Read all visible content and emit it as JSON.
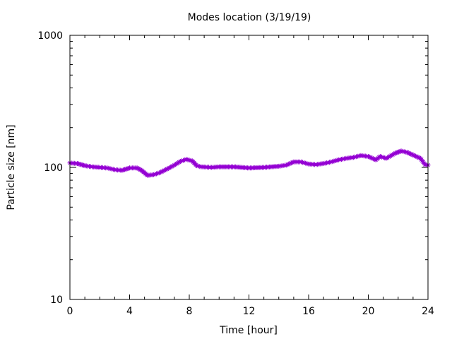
{
  "chart_data": {
    "type": "line",
    "title": "Modes location (3/19/19)",
    "xlabel": "Time [hour]",
    "ylabel": "Particle size [nm]",
    "xlim": [
      0,
      24
    ],
    "ylim": [
      10,
      1000
    ],
    "yscale": "log",
    "grid": false,
    "legend": "none",
    "marker": "star",
    "series_color": "#9400d3",
    "x_ticks": [
      0,
      4,
      8,
      12,
      16,
      20,
      24
    ],
    "x_tick_labels": [
      "0",
      "4",
      "8",
      "12",
      "16",
      "20",
      "24"
    ],
    "y_ticks": [
      10,
      100,
      1000
    ],
    "y_tick_labels": [
      "10",
      "100",
      "1000"
    ],
    "series": [
      {
        "x": [
          0,
          0.5,
          1,
          1.5,
          2,
          2.5,
          3,
          3.5,
          4,
          4.5,
          4.8,
          5.2,
          5.6,
          6,
          6.5,
          7,
          7.4,
          7.8,
          8.2,
          8.5,
          8.8,
          9.5,
          10,
          11,
          12,
          13,
          14,
          14.5,
          15,
          15.5,
          16,
          16.5,
          17,
          17.5,
          18,
          18.5,
          19,
          19.5,
          20,
          20.5,
          20.8,
          21.2,
          21.8,
          22.2,
          22.6,
          23,
          23.5,
          23.8,
          24
        ],
        "y": [
          108,
          107,
          103,
          101,
          100,
          99,
          96,
          95,
          99,
          99,
          95,
          87,
          88,
          91,
          97,
          104,
          111,
          115,
          112,
          103,
          101,
          100,
          101,
          101,
          99,
          100,
          102,
          104,
          110,
          110,
          106,
          105,
          107,
          110,
          114,
          117,
          119,
          123,
          121,
          114,
          121,
          117,
          128,
          133,
          130,
          124,
          117,
          105,
          104
        ]
      }
    ]
  }
}
